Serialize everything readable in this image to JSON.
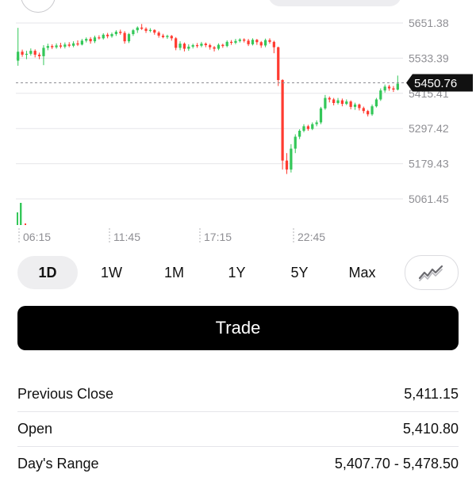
{
  "chart_data": {
    "type": "candlestick",
    "y_ticks": [
      "5651.38",
      "5533.39",
      "5415.41",
      "5297.42",
      "5179.43",
      "5061.45"
    ],
    "x_ticks": [
      "06:15",
      "11:45",
      "17:15",
      "22:45"
    ],
    "current_price": "5450.76",
    "reference_line": 5450.76,
    "ylim": [
      5061.45,
      5651.38
    ],
    "colors": {
      "up": "#34c759",
      "down": "#ff3b30"
    },
    "candles": [
      [
        5525,
        5555,
        5635,
        5508
      ],
      [
        5555,
        5545,
        5562,
        5538
      ],
      [
        5545,
        5548,
        5558,
        5530
      ],
      [
        5548,
        5558,
        5566,
        5542
      ],
      [
        5558,
        5545,
        5563,
        5536
      ],
      [
        5545,
        5540,
        5552,
        5530
      ],
      [
        5540,
        5568,
        5577,
        5510
      ],
      [
        5568,
        5574,
        5582,
        5560
      ],
      [
        5574,
        5570,
        5580,
        5564
      ],
      [
        5570,
        5576,
        5583,
        5565
      ],
      [
        5576,
        5572,
        5585,
        5566
      ],
      [
        5572,
        5579,
        5586,
        5566
      ],
      [
        5579,
        5575,
        5587,
        5570
      ],
      [
        5575,
        5583,
        5590,
        5570
      ],
      [
        5583,
        5579,
        5593,
        5574
      ],
      [
        5579,
        5592,
        5598,
        5576
      ],
      [
        5592,
        5598,
        5603,
        5586
      ],
      [
        5598,
        5590,
        5604,
        5582
      ],
      [
        5590,
        5603,
        5609,
        5584
      ],
      [
        5603,
        5600,
        5610,
        5596
      ],
      [
        5600,
        5612,
        5617,
        5596
      ],
      [
        5612,
        5607,
        5618,
        5600
      ],
      [
        5607,
        5614,
        5619,
        5602
      ],
      [
        5614,
        5622,
        5627,
        5608
      ],
      [
        5622,
        5618,
        5629,
        5612
      ],
      [
        5618,
        5590,
        5624,
        5582
      ],
      [
        5590,
        5614,
        5618,
        5584
      ],
      [
        5614,
        5627,
        5631,
        5608
      ],
      [
        5627,
        5636,
        5640,
        5618
      ],
      [
        5636,
        5632,
        5648,
        5628
      ],
      [
        5632,
        5625,
        5637,
        5618
      ],
      [
        5625,
        5628,
        5634,
        5620
      ],
      [
        5628,
        5619,
        5630,
        5612
      ],
      [
        5619,
        5609,
        5624,
        5602
      ],
      [
        5609,
        5604,
        5615,
        5600
      ],
      [
        5604,
        5608,
        5612,
        5598
      ],
      [
        5608,
        5600,
        5611,
        5592
      ],
      [
        5600,
        5568,
        5604,
        5560
      ],
      [
        5568,
        5582,
        5590,
        5560
      ],
      [
        5582,
        5565,
        5586,
        5556
      ],
      [
        5565,
        5572,
        5580,
        5558
      ],
      [
        5572,
        5577,
        5582,
        5566
      ],
      [
        5577,
        5575,
        5584,
        5568
      ],
      [
        5575,
        5582,
        5588,
        5570
      ],
      [
        5582,
        5577,
        5586,
        5570
      ],
      [
        5577,
        5570,
        5582,
        5562
      ],
      [
        5570,
        5565,
        5574,
        5556
      ],
      [
        5565,
        5578,
        5583,
        5560
      ],
      [
        5578,
        5574,
        5582,
        5568
      ],
      [
        5574,
        5588,
        5593,
        5570
      ],
      [
        5588,
        5585,
        5594,
        5578
      ],
      [
        5585,
        5591,
        5598,
        5580
      ],
      [
        5591,
        5596,
        5600,
        5586
      ],
      [
        5596,
        5592,
        5600,
        5586
      ],
      [
        5592,
        5580,
        5598,
        5574
      ],
      [
        5580,
        5595,
        5600,
        5576
      ],
      [
        5595,
        5587,
        5598,
        5578
      ],
      [
        5587,
        5576,
        5591,
        5568
      ],
      [
        5576,
        5594,
        5599,
        5570
      ],
      [
        5594,
        5588,
        5600,
        5582
      ],
      [
        5588,
        5570,
        5592,
        5550
      ],
      [
        5570,
        5460,
        5572,
        5440
      ],
      [
        5460,
        5190,
        5463,
        5160
      ],
      [
        5190,
        5160,
        5215,
        5145
      ],
      [
        5160,
        5230,
        5245,
        5150
      ],
      [
        5230,
        5270,
        5278,
        5215
      ],
      [
        5270,
        5290,
        5295,
        5262
      ],
      [
        5290,
        5305,
        5312,
        5285
      ],
      [
        5305,
        5296,
        5310,
        5290
      ],
      [
        5296,
        5312,
        5318,
        5292
      ],
      [
        5312,
        5318,
        5325,
        5305
      ],
      [
        5318,
        5365,
        5370,
        5312
      ],
      [
        5365,
        5400,
        5410,
        5360
      ],
      [
        5400,
        5395,
        5405,
        5385
      ],
      [
        5395,
        5383,
        5400,
        5375
      ],
      [
        5383,
        5392,
        5400,
        5378
      ],
      [
        5392,
        5380,
        5398,
        5372
      ],
      [
        5380,
        5388,
        5395,
        5376
      ],
      [
        5388,
        5370,
        5392,
        5362
      ],
      [
        5370,
        5378,
        5384,
        5360
      ],
      [
        5378,
        5366,
        5381,
        5358
      ],
      [
        5366,
        5356,
        5371,
        5348
      ],
      [
        5356,
        5345,
        5360,
        5338
      ],
      [
        5345,
        5372,
        5378,
        5340
      ],
      [
        5372,
        5395,
        5400,
        5368
      ],
      [
        5395,
        5425,
        5432,
        5390
      ],
      [
        5425,
        5438,
        5445,
        5418
      ],
      [
        5438,
        5432,
        5444,
        5424
      ],
      [
        5432,
        5428,
        5440,
        5420
      ],
      [
        5428,
        5448,
        5475,
        5425
      ]
    ]
  },
  "ranges": [
    "1D",
    "1W",
    "1M",
    "1Y",
    "5Y",
    "Max"
  ],
  "active_range": "1D",
  "chart_toggle_icon": "line-chart-icon",
  "trade_label": "Trade",
  "stats": [
    {
      "label": "Previous Close",
      "value": "5,411.15"
    },
    {
      "label": "Open",
      "value": "5,410.80"
    },
    {
      "label": "Day's Range",
      "value": "5,407.70 - 5,478.50"
    }
  ]
}
